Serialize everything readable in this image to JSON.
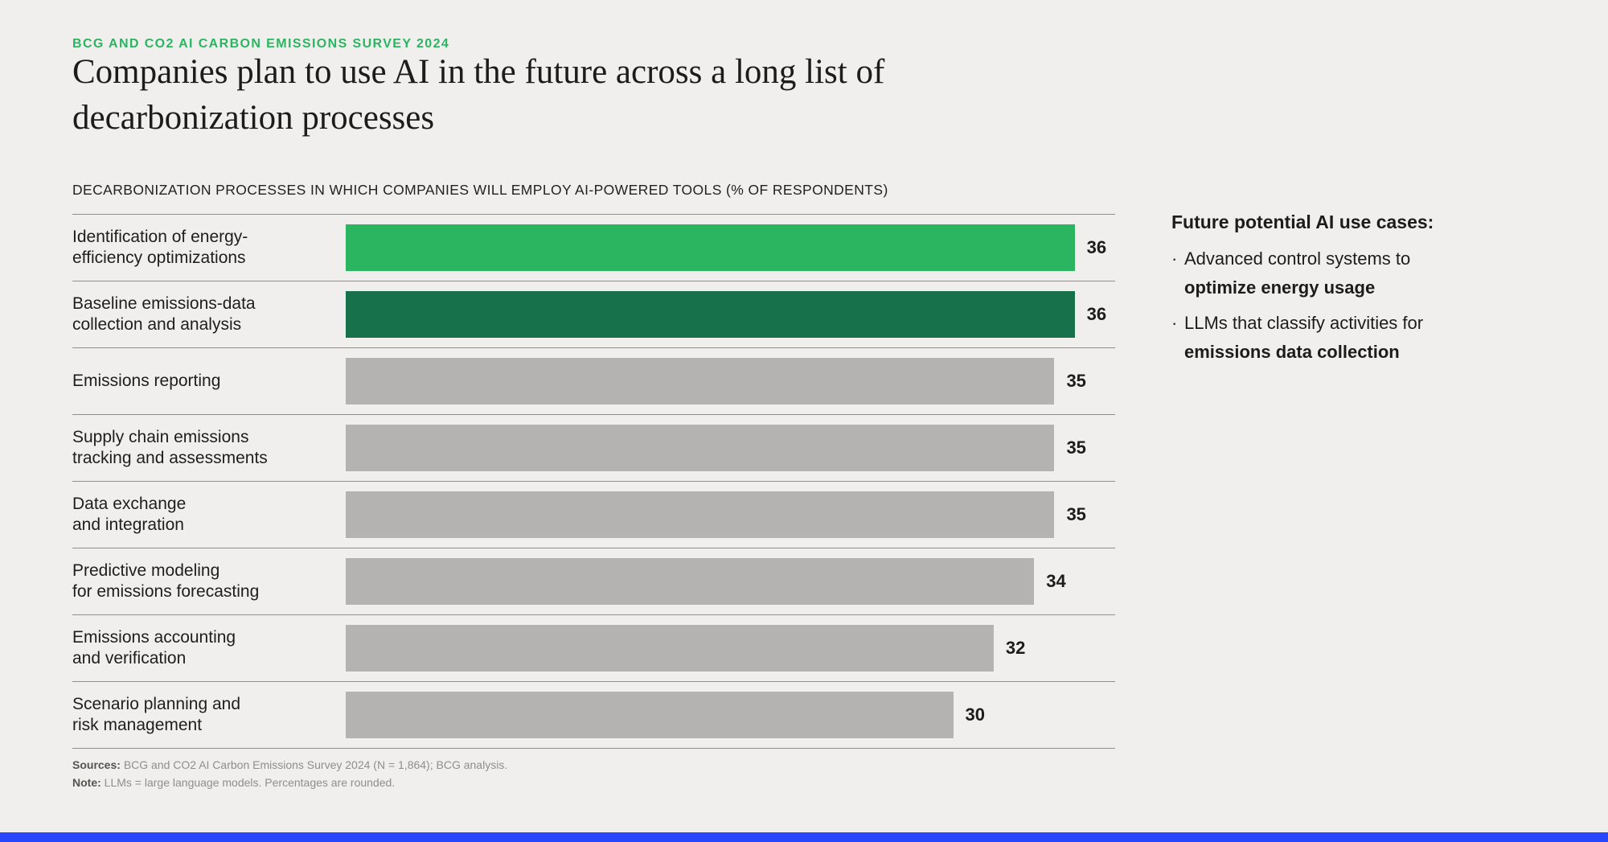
{
  "header": {
    "eyebrow": "BCG AND CO2 AI CARBON EMISSIONS SURVEY 2024",
    "title": "Companies plan to use AI in the future across a long list of\ndecarbonization processes"
  },
  "chart_data": {
    "type": "bar",
    "orientation": "horizontal",
    "title": "DECARBONIZATION PROCESSES IN WHICH COMPANIES WILL EMPLOY AI-POWERED TOOLS (% OF RESPONDENTS)",
    "unit": "% of respondents",
    "categories": [
      "Identification of energy-\nefficiency optimizations",
      "Baseline emissions-data\ncollection and analysis",
      "Emissions reporting",
      "Supply chain emissions\ntracking and assessments",
      "Data exchange\nand integration",
      "Predictive modeling\nfor emissions forecasting",
      "Emissions accounting\nand verification",
      "Scenario planning and\nrisk management"
    ],
    "values": [
      36,
      36,
      35,
      35,
      35,
      34,
      32,
      30
    ],
    "bar_colors": [
      "#2bb561",
      "#17714a",
      "#b4b3b2",
      "#b4b3b2",
      "#b4b3b2",
      "#b4b3b2",
      "#b4b3b2",
      "#b4b3b2"
    ],
    "xlim": [
      0,
      38
    ],
    "grid": false,
    "legend": false,
    "value_labels": true
  },
  "callout": {
    "heading": "Future potential AI use cases:",
    "bullets": [
      {
        "text": "Advanced control systems to",
        "bold": "optimize energy usage"
      },
      {
        "text": "LLMs that classify activities for",
        "bold": "emissions data collection"
      }
    ]
  },
  "footnotes": {
    "sources_label": "Sources:",
    "sources_text": "BCG and CO2 AI Carbon Emissions Survey 2024 (N = 1,864); BCG analysis.",
    "note_label": "Note:",
    "note_text": "LLMs = large language models. Percentages are rounded."
  },
  "colors": {
    "background": "#f0efed",
    "accent_green": "#2bb561",
    "dark_green": "#17714a",
    "bar_gray": "#b4b3b2",
    "divider_gray": "#8f8f8f",
    "bottom_strip_blue": "#2946ff"
  }
}
